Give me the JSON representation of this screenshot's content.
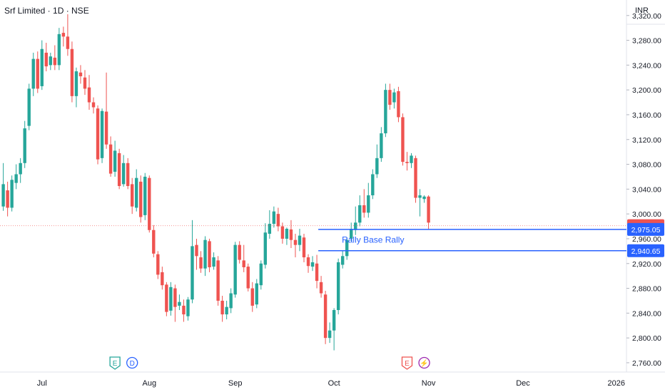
{
  "header": {
    "title": "Srf Limited · 1D · NSE",
    "currency": "INR"
  },
  "colors": {
    "up": "#26a69a",
    "down": "#ef5350",
    "zone": "#2962ff",
    "axis_text": "#131722",
    "grid_line": "#e0e3eb"
  },
  "chart_data": {
    "type": "candlestick",
    "title": "Srf Limited · 1D · NSE",
    "y_unit": "INR",
    "ylim": [
      2745,
      3345
    ],
    "y_ticks": [
      "3,320.00",
      "3,280.00",
      "3,240.00",
      "3,200.00",
      "3,160.00",
      "3,120.00",
      "3,080.00",
      "3,040.00",
      "3,000.00",
      "2,960.00",
      "2,920.00",
      "2,880.00",
      "2,840.00",
      "2,800.00",
      "2,760.00"
    ],
    "y_tick_values": [
      3320,
      3280,
      3240,
      3200,
      3160,
      3120,
      3080,
      3040,
      3000,
      2960,
      2920,
      2880,
      2840,
      2800,
      2760
    ],
    "x_labels": [
      "Jul",
      "Aug",
      "Sep",
      "Oct",
      "Nov",
      "Dec",
      "2026"
    ],
    "x_label_index": [
      9,
      34,
      54,
      77,
      99,
      121,
      143
    ],
    "candles": [
      [
        3012,
        3048,
        3005,
        3082
      ],
      [
        3038,
        3010,
        2996,
        3052
      ],
      [
        3010,
        3055,
        3004,
        3062
      ],
      [
        3050,
        3064,
        3040,
        3080
      ],
      [
        3064,
        3082,
        3050,
        3090
      ],
      [
        3082,
        3138,
        3074,
        3150
      ],
      [
        3142,
        3202,
        3135,
        3210
      ],
      [
        3202,
        3250,
        3190,
        3260
      ],
      [
        3250,
        3202,
        3195,
        3262
      ],
      [
        3206,
        3266,
        3200,
        3280
      ],
      [
        3260,
        3238,
        3230,
        3276
      ],
      [
        3240,
        3254,
        3232,
        3260
      ],
      [
        3252,
        3240,
        3232,
        3272
      ],
      [
        3240,
        3290,
        3232,
        3300
      ],
      [
        3292,
        3286,
        3270,
        3302
      ],
      [
        3286,
        3266,
        3255,
        3322
      ],
      [
        3266,
        3190,
        3180,
        3278
      ],
      [
        3190,
        3230,
        3172,
        3236
      ],
      [
        3228,
        3222,
        3210,
        3240
      ],
      [
        3220,
        3202,
        3192,
        3232
      ],
      [
        3204,
        3180,
        3168,
        3224
      ],
      [
        3180,
        3172,
        3162,
        3188
      ],
      [
        3170,
        3088,
        3080,
        3175
      ],
      [
        3090,
        3166,
        3082,
        3170
      ],
      [
        3165,
        3112,
        3105,
        3228
      ],
      [
        3112,
        3065,
        3060,
        3125
      ],
      [
        3068,
        3102,
        3060,
        3118
      ],
      [
        3098,
        3045,
        3040,
        3105
      ],
      [
        3048,
        3082,
        3044,
        3095
      ],
      [
        3082,
        3045,
        3040,
        3090
      ],
      [
        3048,
        3012,
        3000,
        3058
      ],
      [
        3010,
        3058,
        3004,
        3072
      ],
      [
        3052,
        2995,
        2986,
        3062
      ],
      [
        2998,
        3060,
        2990,
        3066
      ],
      [
        3058,
        2974,
        2970,
        3062
      ],
      [
        2974,
        2936,
        2930,
        2982
      ],
      [
        2935,
        2902,
        2895,
        2940
      ],
      [
        2906,
        2885,
        2878,
        2915
      ],
      [
        2886,
        2842,
        2835,
        2890
      ],
      [
        2844,
        2882,
        2836,
        2890
      ],
      [
        2880,
        2850,
        2826,
        2886
      ],
      [
        2852,
        2858,
        2845,
        2870
      ],
      [
        2852,
        2838,
        2826,
        2862
      ],
      [
        2835,
        2862,
        2828,
        2866
      ],
      [
        2862,
        2948,
        2856,
        2990
      ],
      [
        2950,
        2932,
        2910,
        2960
      ],
      [
        2930,
        2912,
        2905,
        2940
      ],
      [
        2912,
        2958,
        2900,
        2964
      ],
      [
        2956,
        2914,
        2906,
        2960
      ],
      [
        2915,
        2930,
        2910,
        2938
      ],
      [
        2925,
        2860,
        2852,
        2932
      ],
      [
        2860,
        2838,
        2826,
        2868
      ],
      [
        2838,
        2850,
        2830,
        2860
      ],
      [
        2848,
        2872,
        2840,
        2880
      ],
      [
        2870,
        2950,
        2865,
        2955
      ],
      [
        2950,
        2926,
        2920,
        2956
      ],
      [
        2925,
        2914,
        2906,
        2950
      ],
      [
        2915,
        2880,
        2875,
        2920
      ],
      [
        2880,
        2852,
        2842,
        2890
      ],
      [
        2854,
        2888,
        2848,
        2895
      ],
      [
        2885,
        2920,
        2878,
        2925
      ],
      [
        2918,
        2970,
        2912,
        2985
      ],
      [
        2968,
        2984,
        2960,
        3006
      ],
      [
        2984,
        3004,
        2978,
        3012
      ],
      [
        3000,
        2980,
        2972,
        3010
      ],
      [
        2980,
        2960,
        2952,
        2986
      ],
      [
        2960,
        2976,
        2950,
        2978
      ],
      [
        2975,
        2958,
        2945,
        2990
      ],
      [
        2958,
        2950,
        2930,
        2968
      ],
      [
        2950,
        2965,
        2940,
        2976
      ],
      [
        2962,
        2930,
        2922,
        2968
      ],
      [
        2930,
        2916,
        2905,
        2935
      ],
      [
        2915,
        2922,
        2908,
        2932
      ],
      [
        2920,
        2892,
        2880,
        2934
      ],
      [
        2890,
        2872,
        2865,
        2900
      ],
      [
        2870,
        2800,
        2790,
        2876
      ],
      [
        2800,
        2812,
        2792,
        2825
      ],
      [
        2812,
        2845,
        2780,
        2848
      ],
      [
        2845,
        2922,
        2838,
        2928
      ],
      [
        2918,
        2932,
        2912,
        2940
      ],
      [
        2932,
        2958,
        2926,
        2962
      ],
      [
        2960,
        2976,
        2956,
        2986
      ],
      [
        2974,
        2986,
        2966,
        3012
      ],
      [
        2986,
        3014,
        2980,
        3030
      ],
      [
        3014,
        3002,
        2994,
        3040
      ],
      [
        3002,
        3030,
        2994,
        3050
      ],
      [
        3030,
        3064,
        3024,
        3072
      ],
      [
        3064,
        3090,
        3058,
        3112
      ],
      [
        3090,
        3130,
        3084,
        3140
      ],
      [
        3130,
        3200,
        3124,
        3210
      ],
      [
        3200,
        3176,
        3168,
        3210
      ],
      [
        3180,
        3196,
        3170,
        3202
      ],
      [
        3198,
        3156,
        3148,
        3205
      ],
      [
        3156,
        3084,
        3078,
        3162
      ],
      [
        3084,
        3082,
        3070,
        3100
      ],
      [
        3082,
        3094,
        3074,
        3098
      ],
      [
        3090,
        3026,
        3018,
        3094
      ],
      [
        3026,
        3030,
        2996,
        3040
      ],
      [
        3024,
        3028,
        3018,
        3030
      ],
      [
        3028,
        2986,
        2975,
        3030
      ]
    ],
    "price_lines": [
      {
        "label": "2,981.10",
        "value": 2981.1,
        "style": "current"
      },
      {
        "label": "2,975.05",
        "value": 2975.05,
        "style": "zone-top"
      },
      {
        "label": "2,940.65",
        "value": 2940.65,
        "style": "zone-bottom"
      }
    ],
    "annotations": [
      {
        "text": "Rally Base Rally",
        "from_index": 74,
        "price": 2958
      }
    ],
    "event_markers": [
      {
        "text": "E",
        "index": 26,
        "color": "#26a69a"
      },
      {
        "text": "D",
        "index": 30,
        "color": "#2962ff"
      },
      {
        "text": "E",
        "index": 94,
        "color": "#ef5350"
      },
      {
        "text": "⚡",
        "index": 98,
        "color": "#9c27b0"
      }
    ]
  }
}
